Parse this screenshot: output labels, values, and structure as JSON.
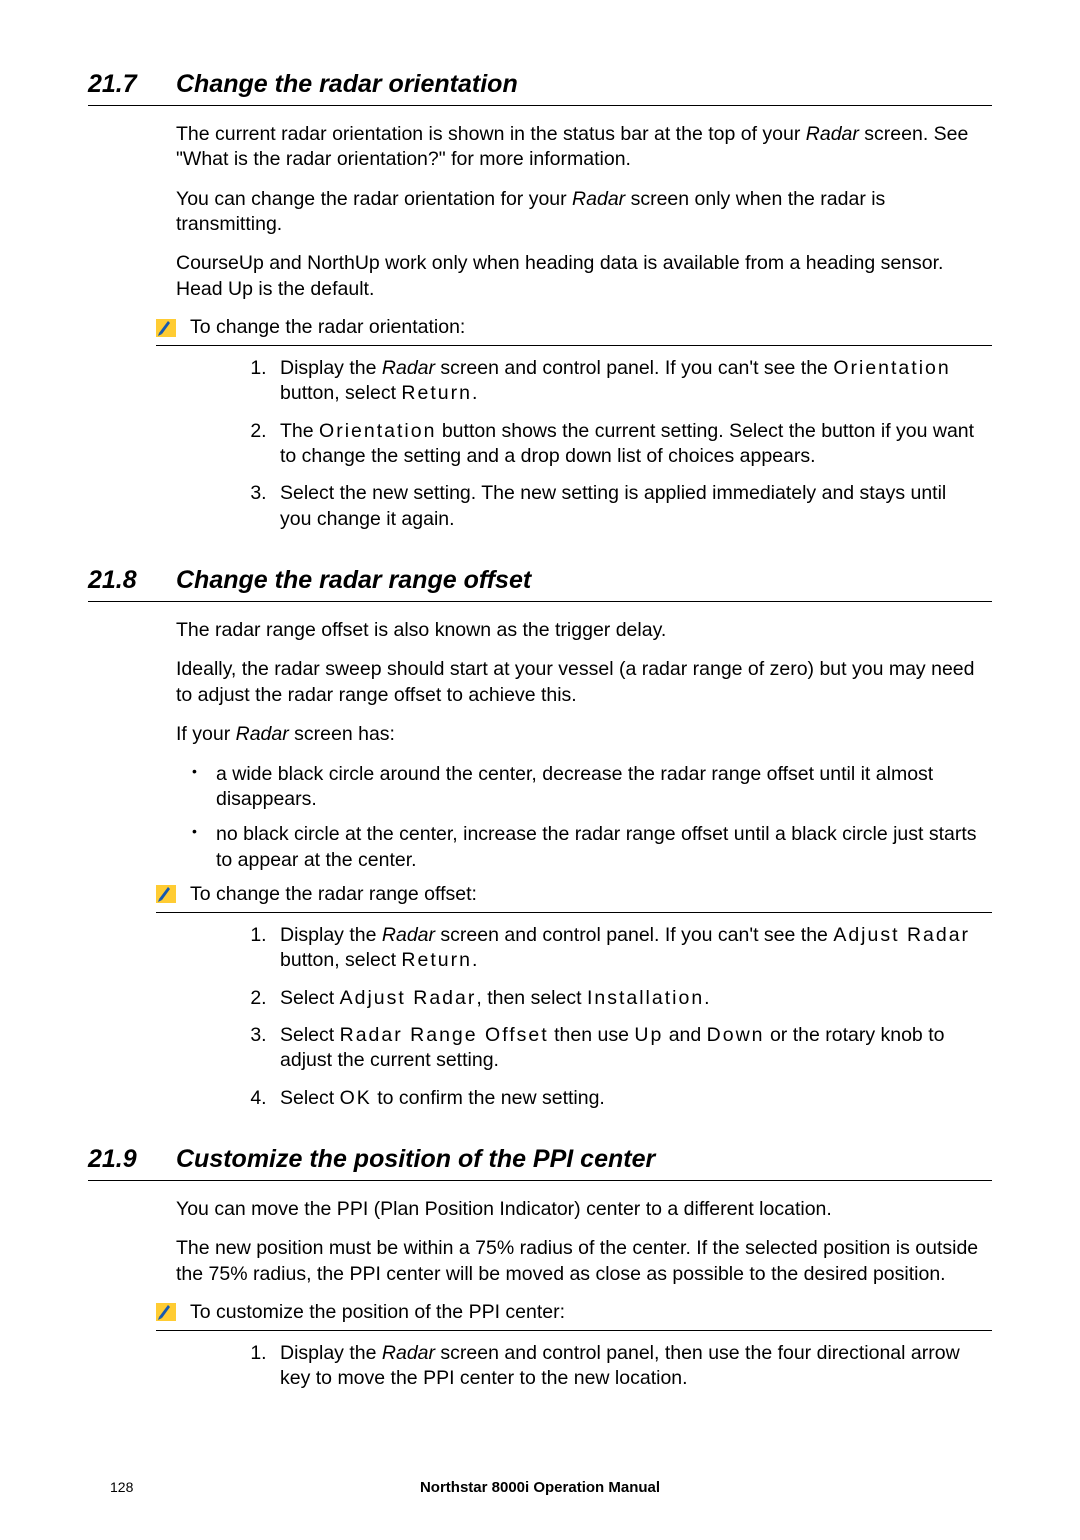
{
  "sections": [
    {
      "num": "21.7",
      "title": "Change the radar orientation",
      "paras": [
        {
          "runs": [
            {
              "t": "The current radar orientation is shown in the status bar at the top of your "
            },
            {
              "t": "Radar",
              "i": true
            },
            {
              "t": " screen. See \"What is the radar orientation?\" for more information."
            }
          ]
        },
        {
          "runs": [
            {
              "t": "You can change the radar orientation for your "
            },
            {
              "t": "Radar",
              "i": true
            },
            {
              "t": " screen only when the radar is transmitting."
            }
          ]
        },
        {
          "runs": [
            {
              "t": "CourseUp and NorthUp work only when heading data is available from a heading sensor. Head Up is the default."
            }
          ]
        }
      ],
      "procedure": {
        "label": "To change the radar orientation:",
        "steps": [
          {
            "runs": [
              {
                "t": "Display the "
              },
              {
                "t": "Radar",
                "i": true
              },
              {
                "t": " screen and control panel. If you can't see the "
              },
              {
                "t": "Orientation",
                "btn": true
              },
              {
                "t": " button, select "
              },
              {
                "t": "Return",
                "btn": true
              },
              {
                "t": "."
              }
            ]
          },
          {
            "runs": [
              {
                "t": "The "
              },
              {
                "t": "Orientation",
                "btn": true
              },
              {
                "t": "  button shows the current setting. Select the button if you want to change the setting and a drop down list of choices appears."
              }
            ]
          },
          {
            "runs": [
              {
                "t": "Select the new setting. The new setting is applied immediately and stays until you change it again."
              }
            ]
          }
        ]
      }
    },
    {
      "num": "21.8",
      "title": "Change the radar range offset",
      "paras": [
        {
          "runs": [
            {
              "t": "The radar range offset is also known as the trigger delay."
            }
          ]
        },
        {
          "runs": [
            {
              "t": "Ideally, the radar sweep should start at your vessel (a radar range of zero) but you may need to adjust the radar range offset to achieve this."
            }
          ]
        },
        {
          "runs": [
            {
              "t": "If your "
            },
            {
              "t": "Radar",
              "i": true
            },
            {
              "t": " screen has:"
            }
          ]
        }
      ],
      "bullets": [
        {
          "runs": [
            {
              "t": "a wide black circle around the center, decrease the radar range offset until it almost disappears."
            }
          ]
        },
        {
          "runs": [
            {
              "t": "no black circle at the center, increase the radar range offset until a black circle just starts to appear at the center."
            }
          ]
        }
      ],
      "procedure": {
        "label": "To change the radar range offset:",
        "steps": [
          {
            "runs": [
              {
                "t": "Display the "
              },
              {
                "t": "Radar",
                "i": true
              },
              {
                "t": " screen and control panel. If you can't see the "
              },
              {
                "t": "Adjust Radar",
                "btn": true
              },
              {
                "t": " button, select "
              },
              {
                "t": "Return",
                "btn": true
              },
              {
                "t": "."
              }
            ]
          },
          {
            "runs": [
              {
                "t": "Select "
              },
              {
                "t": "Adjust Radar",
                "btn": true
              },
              {
                "t": ", then select "
              },
              {
                "t": "Installation",
                "btn": true
              },
              {
                "t": "."
              }
            ]
          },
          {
            "runs": [
              {
                "t": "Select "
              },
              {
                "t": "Radar Range Offset",
                "btn": true
              },
              {
                "t": " then use "
              },
              {
                "t": "Up",
                "btn": true
              },
              {
                "t": " and "
              },
              {
                "t": "Down",
                "btn": true
              },
              {
                "t": " or the rotary knob to adjust the current setting."
              }
            ]
          },
          {
            "runs": [
              {
                "t": "Select "
              },
              {
                "t": "OK",
                "btn": true
              },
              {
                "t": " to confirm the new setting."
              }
            ]
          }
        ]
      }
    },
    {
      "num": "21.9",
      "title": "Customize the position of the PPI center",
      "paras": [
        {
          "runs": [
            {
              "t": "You can move the PPI (Plan Position Indicator) center to a different location."
            }
          ]
        },
        {
          "runs": [
            {
              "t": "The new position must be within a 75% radius of the center. If the selected position is outside the 75% radius, the PPI center will be moved as close as possible to the desired position."
            }
          ]
        }
      ],
      "procedure": {
        "label": "To customize the position of the PPI center:",
        "steps": [
          {
            "runs": [
              {
                "t": "Display the "
              },
              {
                "t": "Radar",
                "i": true
              },
              {
                "t": " screen and control panel, then use the four directional arrow key to move the PPI center to the new location."
              }
            ]
          }
        ]
      }
    }
  ],
  "footer": {
    "page": "128",
    "manual": "Northstar 8000i Operation Manual"
  },
  "colors": {
    "text": "#000000",
    "accent": "#ffcc33",
    "rule": "#000000",
    "pencil": "#1558b0"
  }
}
